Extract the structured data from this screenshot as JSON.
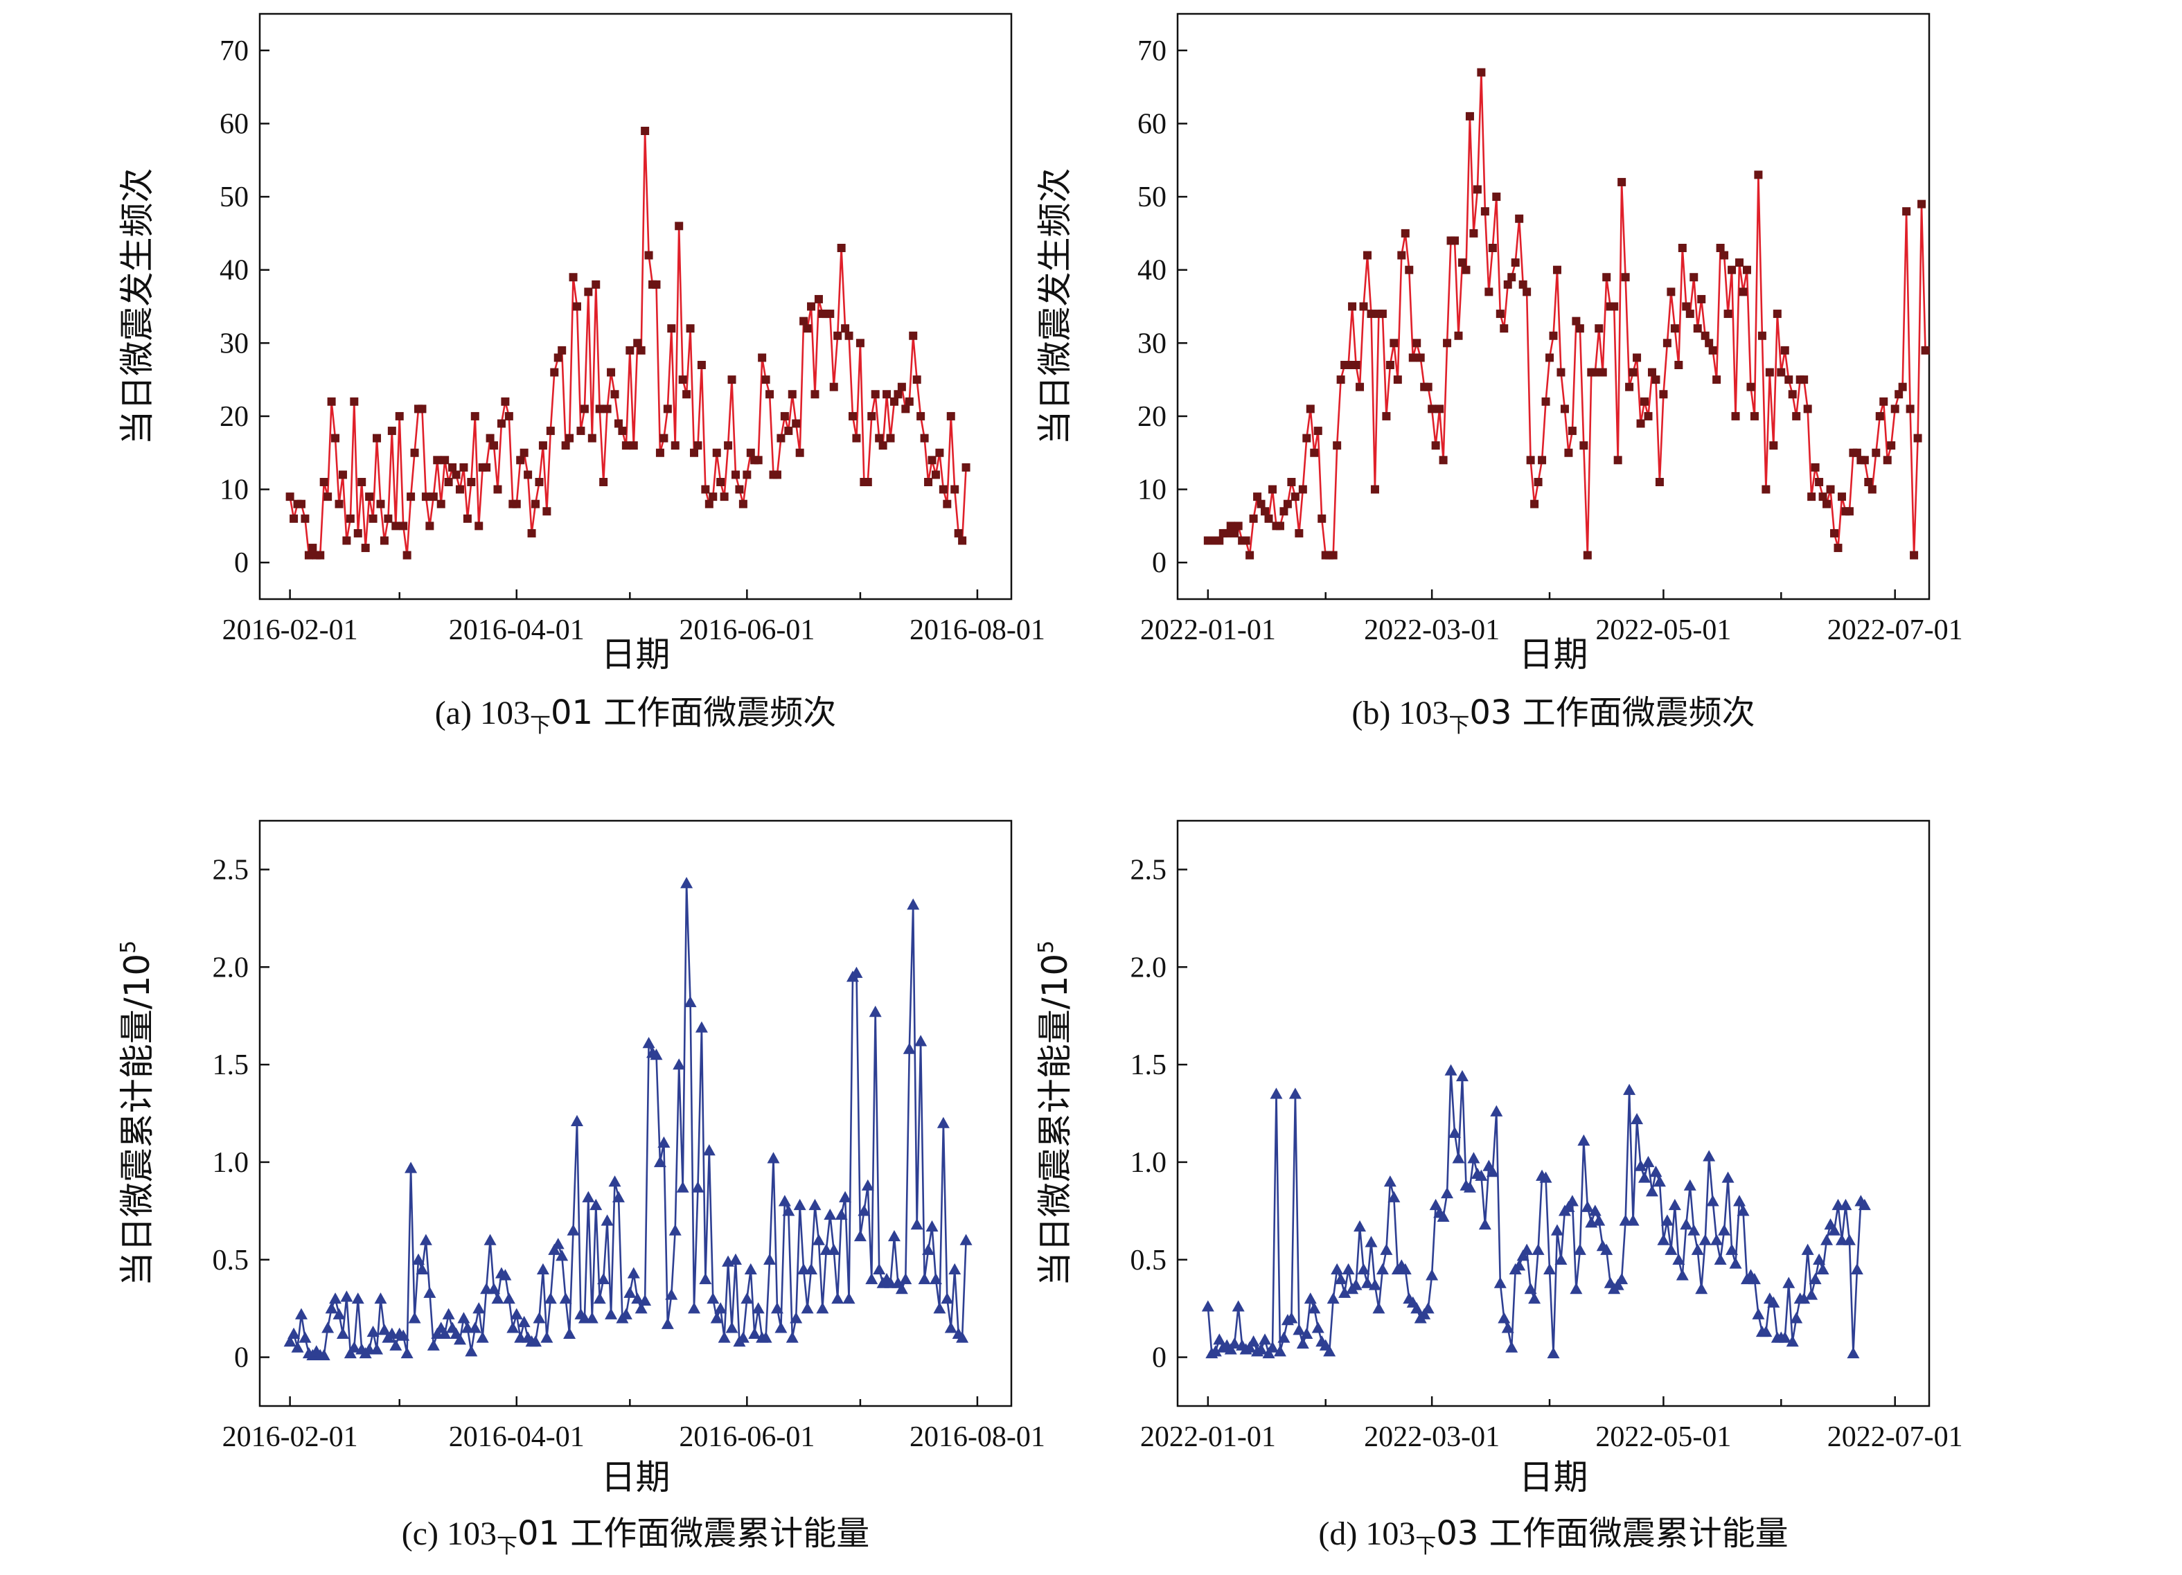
{
  "chart_data": [
    {
      "type": "line",
      "caption": {
        "prefix": "(a) 103",
        "subscript": "下",
        "suffix": "01 工作面微震频次"
      },
      "xlabel": "日期",
      "ylabel": "当日微震发生频次",
      "ylabel_sup": "",
      "xlim": [
        "2016-01-24",
        "2016-08-10"
      ],
      "ylim": [
        -5,
        75
      ],
      "yticks": [
        0,
        10,
        20,
        30,
        40,
        50,
        60,
        70
      ],
      "ytick_labels": [
        "0",
        "10",
        "20",
        "30",
        "40",
        "50",
        "60",
        "70"
      ],
      "xticks": [
        "2016-02-01",
        "2016-04-01",
        "2016-06-01",
        "2016-08-01"
      ],
      "xticks_minor": [
        "2016-03-01",
        "2016-05-01",
        "2016-07-01"
      ],
      "marker": "square",
      "line_color": "#e0202a",
      "marker_color": "#6b1414",
      "x_start": "2016-02-01",
      "values": [
        9,
        6,
        8,
        8,
        6,
        1,
        2,
        1,
        1,
        11,
        9,
        22,
        17,
        8,
        12,
        3,
        6,
        22,
        4,
        11,
        2,
        9,
        6,
        17,
        8,
        3,
        6,
        18,
        5,
        20,
        5,
        1,
        9,
        15,
        21,
        21,
        9,
        5,
        9,
        14,
        8,
        14,
        11,
        13,
        12,
        10,
        13,
        6,
        11,
        20,
        5,
        13,
        13,
        17,
        16,
        10,
        19,
        22,
        20,
        8,
        8,
        14,
        15,
        12,
        4,
        8,
        11,
        16,
        7,
        18,
        26,
        28,
        29,
        16,
        17,
        39,
        35,
        18,
        21,
        37,
        17,
        38,
        21,
        11,
        21,
        26,
        23,
        19,
        18,
        16,
        29,
        16,
        30,
        29,
        59,
        42,
        38,
        38,
        15,
        17,
        21,
        32,
        16,
        46,
        25,
        23,
        32,
        15,
        16,
        27,
        10,
        8,
        9,
        15,
        11,
        9,
        16,
        25,
        12,
        10,
        8,
        12,
        15,
        14,
        14,
        28,
        25,
        23,
        12,
        12,
        17,
        20,
        18,
        23,
        19,
        15,
        33,
        32,
        35,
        23,
        36,
        34,
        34,
        34,
        24,
        31,
        43,
        32,
        31,
        20,
        17,
        30,
        11,
        11,
        20,
        23,
        17,
        16,
        23,
        17,
        22,
        23,
        24,
        21,
        22,
        31,
        25,
        20,
        17,
        11,
        14,
        12,
        15,
        10,
        8,
        20,
        10,
        4,
        3,
        13
      ]
    },
    {
      "type": "line",
      "caption": {
        "prefix": "(b) 103",
        "subscript": "下",
        "suffix": "03 工作面微震频次"
      },
      "xlabel": "日期",
      "ylabel": "当日微震发生频次",
      "ylabel_sup": "",
      "xlim": [
        "2021-12-24",
        "2022-07-10"
      ],
      "ylim": [
        -5,
        75
      ],
      "yticks": [
        0,
        10,
        20,
        30,
        40,
        50,
        60,
        70
      ],
      "ytick_labels": [
        "0",
        "10",
        "20",
        "30",
        "40",
        "50",
        "60",
        "70"
      ],
      "xticks": [
        "2022-01-01",
        "2022-03-01",
        "2022-05-01",
        "2022-07-01"
      ],
      "xticks_minor": [
        "2022-02-01",
        "2022-04-01",
        "2022-06-01"
      ],
      "marker": "square",
      "line_color": "#e0202a",
      "marker_color": "#6b1414",
      "x_start": "2022-01-01",
      "values": [
        3,
        3,
        3,
        3,
        4,
        4,
        5,
        4,
        5,
        3,
        3,
        1,
        6,
        9,
        8,
        7,
        6,
        10,
        5,
        5,
        7,
        8,
        11,
        9,
        4,
        10,
        17,
        21,
        15,
        18,
        6,
        1,
        1,
        1,
        16,
        25,
        27,
        27,
        35,
        27,
        24,
        35,
        42,
        34,
        10,
        34,
        34,
        20,
        27,
        30,
        25,
        42,
        45,
        40,
        28,
        30,
        28,
        24,
        24,
        21,
        16,
        21,
        14,
        30,
        44,
        44,
        31,
        41,
        40,
        61,
        45,
        51,
        67,
        48,
        37,
        43,
        50,
        34,
        32,
        38,
        39,
        41,
        47,
        38,
        37,
        14,
        8,
        11,
        14,
        22,
        28,
        31,
        40,
        26,
        21,
        15,
        18,
        33,
        32,
        16,
        1,
        26,
        26,
        32,
        26,
        39,
        35,
        35,
        14,
        52,
        39,
        24,
        26,
        28,
        19,
        22,
        20,
        26,
        25,
        11,
        23,
        30,
        37,
        32,
        27,
        43,
        35,
        34,
        39,
        32,
        36,
        31,
        30,
        29,
        25,
        43,
        42,
        34,
        40,
        20,
        41,
        37,
        40,
        24,
        20,
        53,
        31,
        10,
        26,
        16,
        34,
        26,
        29,
        25,
        23,
        20,
        25,
        25,
        21,
        9,
        13,
        11,
        9,
        8,
        10,
        4,
        2,
        9,
        7,
        7,
        15,
        15,
        14,
        14,
        11,
        10,
        15,
        20,
        22,
        14,
        16,
        21,
        23,
        24,
        48,
        21,
        1,
        17,
        49,
        29
      ]
    },
    {
      "type": "line",
      "caption": {
        "prefix": "(c) 103",
        "subscript": "下",
        "suffix": "01 工作面微震累计能量"
      },
      "xlabel": "日期",
      "ylabel": "当日微震累计能量/10",
      "ylabel_sup": "5",
      "xlim": [
        "2016-01-24",
        "2016-08-10"
      ],
      "ylim": [
        -0.25,
        2.75
      ],
      "yticks": [
        0,
        0.5,
        1.0,
        1.5,
        2.0,
        2.5
      ],
      "ytick_labels": [
        "0",
        "0.5",
        "1.0",
        "1.5",
        "2.0",
        "2.5"
      ],
      "xticks": [
        "2016-02-01",
        "2016-04-01",
        "2016-06-01",
        "2016-08-01"
      ],
      "xticks_minor": [
        "2016-03-01",
        "2016-05-01",
        "2016-07-01"
      ],
      "marker": "triangle",
      "line_color": "#2e3f93",
      "marker_color": "#2e3f93",
      "x_start": "2016-02-01",
      "values": [
        0.08,
        0.12,
        0.05,
        0.22,
        0.1,
        0.02,
        0.01,
        0.03,
        0.01,
        0.01,
        0.15,
        0.25,
        0.3,
        0.22,
        0.12,
        0.31,
        0.02,
        0.05,
        0.3,
        0.04,
        0.02,
        0.04,
        0.13,
        0.04,
        0.3,
        0.14,
        0.1,
        0.12,
        0.06,
        0.12,
        0.11,
        0.02,
        0.97,
        0.2,
        0.5,
        0.45,
        0.6,
        0.33,
        0.06,
        0.12,
        0.15,
        0.12,
        0.22,
        0.15,
        0.12,
        0.09,
        0.2,
        0.15,
        0.03,
        0.15,
        0.25,
        0.1,
        0.35,
        0.6,
        0.35,
        0.3,
        0.43,
        0.42,
        0.3,
        0.15,
        0.22,
        0.1,
        0.18,
        0.1,
        0.08,
        0.08,
        0.2,
        0.45,
        0.1,
        0.3,
        0.55,
        0.58,
        0.52,
        0.3,
        0.12,
        0.65,
        1.21,
        0.22,
        0.2,
        0.82,
        0.2,
        0.78,
        0.3,
        0.4,
        0.7,
        0.22,
        0.9,
        0.82,
        0.2,
        0.22,
        0.33,
        0.43,
        0.3,
        0.25,
        0.29,
        1.61,
        1.56,
        1.55,
        1.0,
        1.1,
        0.17,
        0.32,
        0.65,
        1.5,
        0.87,
        2.43,
        1.82,
        0.25,
        0.87,
        1.69,
        0.4,
        1.06,
        0.3,
        0.2,
        0.25,
        0.1,
        0.49,
        0.15,
        0.5,
        0.08,
        0.1,
        0.3,
        0.45,
        0.12,
        0.25,
        0.1,
        0.1,
        0.5,
        1.02,
        0.25,
        0.15,
        0.8,
        0.75,
        0.1,
        0.2,
        0.78,
        0.45,
        0.25,
        0.45,
        0.78,
        0.6,
        0.25,
        0.55,
        0.73,
        0.55,
        0.3,
        0.73,
        0.82,
        0.3,
        1.95,
        1.97,
        0.62,
        0.75,
        0.88,
        0.4,
        1.77,
        0.45,
        0.38,
        0.4,
        0.38,
        0.62,
        0.38,
        0.35,
        0.4,
        1.58,
        2.32,
        0.68,
        1.62,
        0.4,
        0.55,
        0.67,
        0.4,
        0.25,
        1.2,
        0.3,
        0.15,
        0.45,
        0.12,
        0.1,
        0.6
      ]
    },
    {
      "type": "line",
      "caption": {
        "prefix": "(d) 103",
        "subscript": "下",
        "suffix": "03 工作面微震累计能量"
      },
      "xlabel": "日期",
      "ylabel": "当日微震累计能量/10",
      "ylabel_sup": "5",
      "xlim": [
        "2021-12-24",
        "2022-07-10"
      ],
      "ylim": [
        -0.25,
        2.75
      ],
      "yticks": [
        0,
        0.5,
        1.0,
        1.5,
        2.0,
        2.5
      ],
      "ytick_labels": [
        "0",
        "0.5",
        "1.0",
        "1.5",
        "2.0",
        "2.5"
      ],
      "xticks": [
        "2022-01-01",
        "2022-03-01",
        "2022-05-01",
        "2022-07-01"
      ],
      "xticks_minor": [
        "2022-02-01",
        "2022-04-01",
        "2022-06-01"
      ],
      "marker": "triangle",
      "line_color": "#2e3f93",
      "marker_color": "#2e3f93",
      "x_start": "2022-01-01",
      "values": [
        0.26,
        0.02,
        0.03,
        0.09,
        0.05,
        0.06,
        0.04,
        0.07,
        0.26,
        0.06,
        0.04,
        0.05,
        0.08,
        0.03,
        0.04,
        0.09,
        0.02,
        0.05,
        1.35,
        0.03,
        0.1,
        0.19,
        0.2,
        1.35,
        0.14,
        0.07,
        0.12,
        0.3,
        0.25,
        0.15,
        0.08,
        0.06,
        0.03,
        0.3,
        0.45,
        0.4,
        0.33,
        0.45,
        0.35,
        0.37,
        0.67,
        0.45,
        0.38,
        0.59,
        0.37,
        0.25,
        0.45,
        0.55,
        0.9,
        0.82,
        0.45,
        0.47,
        0.45,
        0.3,
        0.28,
        0.25,
        0.2,
        0.22,
        0.25,
        0.42,
        0.78,
        0.74,
        0.72,
        0.84,
        1.47,
        1.15,
        1.02,
        1.44,
        0.88,
        0.87,
        1.02,
        0.94,
        0.93,
        0.68,
        0.98,
        0.95,
        1.26,
        0.38,
        0.2,
        0.15,
        0.05,
        0.45,
        0.47,
        0.52,
        0.55,
        0.35,
        0.3,
        0.55,
        0.93,
        0.92,
        0.45,
        0.02,
        0.65,
        0.5,
        0.75,
        0.77,
        0.8,
        0.35,
        0.55,
        1.11,
        0.77,
        0.69,
        0.75,
        0.7,
        0.57,
        0.55,
        0.38,
        0.35,
        0.37,
        0.4,
        0.7,
        1.37,
        0.7,
        1.22,
        0.98,
        0.92,
        1.0,
        0.85,
        0.95,
        0.9,
        0.6,
        0.7,
        0.55,
        0.78,
        0.5,
        0.42,
        0.68,
        0.88,
        0.65,
        0.55,
        0.35,
        0.6,
        1.03,
        0.8,
        0.6,
        0.5,
        0.65,
        0.92,
        0.55,
        0.48,
        0.8,
        0.75,
        0.4,
        0.42,
        0.4,
        0.22,
        0.13,
        0.13,
        0.3,
        0.28,
        0.1,
        0.1,
        0.1,
        0.38,
        0.08,
        0.2,
        0.3,
        0.3,
        0.55,
        0.32,
        0.4,
        0.5,
        0.45,
        0.6,
        0.68,
        0.65,
        0.78,
        0.6,
        0.78,
        0.6,
        0.02,
        0.45,
        0.8,
        0.78
      ]
    }
  ]
}
